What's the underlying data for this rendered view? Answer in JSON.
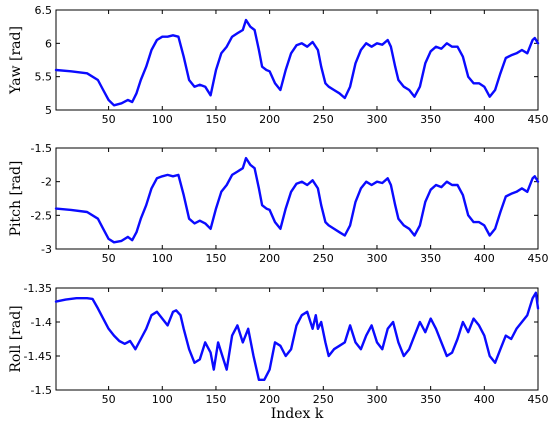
{
  "chart_data": [
    {
      "type": "line",
      "ylabel": "Yaw [rad]",
      "xlabel": "",
      "xlim": [
        1,
        450
      ],
      "ylim": [
        5,
        6.5
      ],
      "xticks": [
        50,
        100,
        150,
        200,
        250,
        300,
        350,
        400,
        450
      ],
      "yticks": [
        5,
        5.5,
        6,
        6.5
      ],
      "ytick_labels": [
        "5",
        "5.5",
        "6",
        "6.5"
      ],
      "grid": false,
      "series": [
        {
          "color": "#0b0bff",
          "x": [
            1,
            15,
            30,
            40,
            45,
            50,
            55,
            62,
            68,
            72,
            76,
            80,
            85,
            90,
            95,
            100,
            105,
            110,
            115,
            120,
            125,
            130,
            135,
            140,
            145,
            150,
            155,
            160,
            165,
            170,
            175,
            178,
            182,
            186,
            190,
            193,
            197,
            200,
            205,
            210,
            215,
            220,
            225,
            230,
            235,
            240,
            245,
            248,
            252,
            255,
            260,
            265,
            270,
            275,
            280,
            285,
            290,
            295,
            300,
            305,
            310,
            313,
            317,
            320,
            325,
            330,
            335,
            340,
            345,
            350,
            355,
            360,
            365,
            370,
            375,
            380,
            385,
            390,
            395,
            400,
            405,
            410,
            415,
            420,
            425,
            430,
            435,
            440,
            445,
            447,
            450
          ],
          "values": [
            5.6,
            5.58,
            5.55,
            5.45,
            5.3,
            5.15,
            5.07,
            5.1,
            5.15,
            5.12,
            5.25,
            5.45,
            5.65,
            5.9,
            6.05,
            6.1,
            6.1,
            6.12,
            6.1,
            5.8,
            5.45,
            5.35,
            5.38,
            5.35,
            5.22,
            5.6,
            5.85,
            5.95,
            6.1,
            6.15,
            6.2,
            6.35,
            6.25,
            6.2,
            5.9,
            5.65,
            5.6,
            5.58,
            5.4,
            5.3,
            5.6,
            5.85,
            5.97,
            6.0,
            5.95,
            6.02,
            5.9,
            5.65,
            5.4,
            5.35,
            5.3,
            5.25,
            5.18,
            5.35,
            5.7,
            5.9,
            6.0,
            5.95,
            6.0,
            5.98,
            6.05,
            5.95,
            5.65,
            5.45,
            5.35,
            5.3,
            5.2,
            5.35,
            5.7,
            5.88,
            5.95,
            5.92,
            6.0,
            5.95,
            5.95,
            5.8,
            5.5,
            5.4,
            5.4,
            5.35,
            5.2,
            5.3,
            5.55,
            5.78,
            5.82,
            5.85,
            5.9,
            5.85,
            6.05,
            6.08,
            6.0
          ]
        }
      ]
    },
    {
      "type": "line",
      "ylabel": "Pitch [rad]",
      "xlabel": "",
      "xlim": [
        1,
        450
      ],
      "ylim": [
        -3,
        -1.5
      ],
      "xticks": [
        50,
        100,
        150,
        200,
        250,
        300,
        350,
        400,
        450
      ],
      "yticks": [
        -3,
        -2.5,
        -2,
        -1.5
      ],
      "ytick_labels": [
        "-3",
        "-2.5",
        "-2",
        "-1.5"
      ],
      "grid": false,
      "series": [
        {
          "color": "#0b0bff",
          "x": [
            1,
            15,
            30,
            40,
            45,
            50,
            55,
            62,
            68,
            72,
            76,
            80,
            85,
            90,
            95,
            100,
            105,
            110,
            115,
            120,
            125,
            130,
            135,
            140,
            145,
            150,
            155,
            160,
            165,
            170,
            175,
            178,
            182,
            186,
            190,
            193,
            197,
            200,
            205,
            210,
            215,
            220,
            225,
            230,
            235,
            240,
            245,
            248,
            252,
            255,
            260,
            265,
            270,
            275,
            280,
            285,
            290,
            295,
            300,
            305,
            310,
            313,
            317,
            320,
            325,
            330,
            335,
            340,
            345,
            350,
            355,
            360,
            365,
            370,
            375,
            380,
            385,
            390,
            395,
            400,
            405,
            410,
            415,
            420,
            425,
            430,
            435,
            440,
            445,
            447,
            450
          ],
          "values": [
            -2.4,
            -2.42,
            -2.45,
            -2.55,
            -2.7,
            -2.85,
            -2.9,
            -2.88,
            -2.82,
            -2.87,
            -2.75,
            -2.55,
            -2.35,
            -2.1,
            -1.95,
            -1.92,
            -1.9,
            -1.92,
            -1.9,
            -2.2,
            -2.55,
            -2.62,
            -2.58,
            -2.62,
            -2.7,
            -2.4,
            -2.15,
            -2.05,
            -1.9,
            -1.85,
            -1.8,
            -1.65,
            -1.75,
            -1.8,
            -2.1,
            -2.35,
            -2.4,
            -2.42,
            -2.6,
            -2.7,
            -2.4,
            -2.15,
            -2.03,
            -2.0,
            -2.05,
            -1.98,
            -2.1,
            -2.35,
            -2.6,
            -2.65,
            -2.7,
            -2.75,
            -2.8,
            -2.65,
            -2.3,
            -2.1,
            -2.0,
            -2.05,
            -2.0,
            -2.02,
            -1.95,
            -2.05,
            -2.35,
            -2.55,
            -2.65,
            -2.7,
            -2.8,
            -2.65,
            -2.3,
            -2.12,
            -2.05,
            -2.08,
            -2.0,
            -2.05,
            -2.05,
            -2.2,
            -2.5,
            -2.6,
            -2.6,
            -2.65,
            -2.8,
            -2.7,
            -2.45,
            -2.22,
            -2.18,
            -2.15,
            -2.1,
            -2.15,
            -1.95,
            -1.92,
            -2.0
          ]
        }
      ]
    },
    {
      "type": "line",
      "ylabel": "Roll [rad]",
      "xlabel": "Index k",
      "xlim": [
        1,
        450
      ],
      "ylim": [
        -1.5,
        -1.35
      ],
      "xticks": [
        50,
        100,
        150,
        200,
        250,
        300,
        350,
        400,
        450
      ],
      "xtick_labels": [
        "50",
        "100",
        "150",
        "200",
        "250",
        "300",
        "350",
        "400",
        "450"
      ],
      "yticks": [
        -1.5,
        -1.45,
        -1.4,
        -1.35
      ],
      "ytick_labels": [
        "-1.5",
        "-1.45",
        "-1.4",
        "-1.35"
      ],
      "grid": false,
      "series": [
        {
          "color": "#0b0bff",
          "x": [
            1,
            10,
            20,
            30,
            35,
            40,
            45,
            50,
            55,
            60,
            65,
            70,
            75,
            80,
            85,
            90,
            95,
            100,
            105,
            110,
            113,
            117,
            120,
            125,
            130,
            135,
            140,
            145,
            148,
            152,
            155,
            160,
            165,
            170,
            175,
            180,
            185,
            190,
            195,
            200,
            205,
            210,
            215,
            220,
            225,
            230,
            235,
            240,
            243,
            245,
            248,
            252,
            255,
            260,
            265,
            270,
            275,
            280,
            285,
            290,
            295,
            300,
            305,
            310,
            315,
            320,
            325,
            330,
            335,
            340,
            345,
            350,
            355,
            360,
            365,
            370,
            375,
            380,
            385,
            390,
            395,
            400,
            405,
            410,
            415,
            420,
            425,
            430,
            435,
            440,
            445,
            448,
            450
          ],
          "values": [
            -1.37,
            -1.367,
            -1.365,
            -1.365,
            -1.366,
            -1.38,
            -1.395,
            -1.41,
            -1.42,
            -1.428,
            -1.432,
            -1.428,
            -1.44,
            -1.425,
            -1.41,
            -1.39,
            -1.385,
            -1.395,
            -1.405,
            -1.385,
            -1.383,
            -1.39,
            -1.41,
            -1.44,
            -1.46,
            -1.455,
            -1.43,
            -1.445,
            -1.47,
            -1.43,
            -1.445,
            -1.47,
            -1.42,
            -1.405,
            -1.43,
            -1.41,
            -1.45,
            -1.485,
            -1.485,
            -1.47,
            -1.43,
            -1.435,
            -1.45,
            -1.44,
            -1.405,
            -1.39,
            -1.385,
            -1.41,
            -1.39,
            -1.41,
            -1.4,
            -1.43,
            -1.45,
            -1.44,
            -1.435,
            -1.43,
            -1.405,
            -1.43,
            -1.44,
            -1.42,
            -1.405,
            -1.43,
            -1.44,
            -1.41,
            -1.4,
            -1.43,
            -1.45,
            -1.44,
            -1.42,
            -1.4,
            -1.415,
            -1.395,
            -1.41,
            -1.43,
            -1.45,
            -1.445,
            -1.425,
            -1.4,
            -1.415,
            -1.395,
            -1.405,
            -1.42,
            -1.45,
            -1.46,
            -1.44,
            -1.42,
            -1.425,
            -1.41,
            -1.4,
            -1.39,
            -1.365,
            -1.357,
            -1.38
          ]
        }
      ]
    }
  ]
}
